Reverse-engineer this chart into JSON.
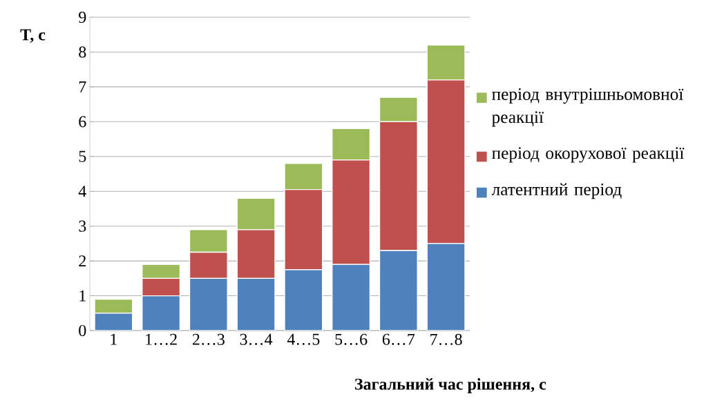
{
  "chart_data": {
    "type": "bar",
    "stacked": true,
    "xlabel": "Загальний час рішення, с",
    "ylabel": "T, с",
    "categories": [
      "1",
      "1…2",
      "2…3",
      "3…4",
      "4…5",
      "5…6",
      "6…7",
      "7…8"
    ],
    "series": [
      {
        "name": "латентний період",
        "color": "#4f81bd",
        "values": [
          0.5,
          1.0,
          1.5,
          1.5,
          1.75,
          1.9,
          2.3,
          2.5
        ]
      },
      {
        "name": "період окорухової реакції",
        "color": "#c0504d",
        "values": [
          0,
          0.5,
          0.75,
          1.4,
          2.3,
          3.0,
          3.7,
          4.7
        ]
      },
      {
        "name": "період внутрішньомовної реакції",
        "color": "#9bbb59",
        "values": [
          0.4,
          0.4,
          0.65,
          0.9,
          0.75,
          0.9,
          0.7,
          1.0
        ]
      }
    ],
    "ylim": [
      0,
      9
    ],
    "yticks": [
      0,
      1,
      2,
      3,
      4,
      5,
      6,
      7,
      8,
      9
    ],
    "grid": "y",
    "legend": "right"
  }
}
